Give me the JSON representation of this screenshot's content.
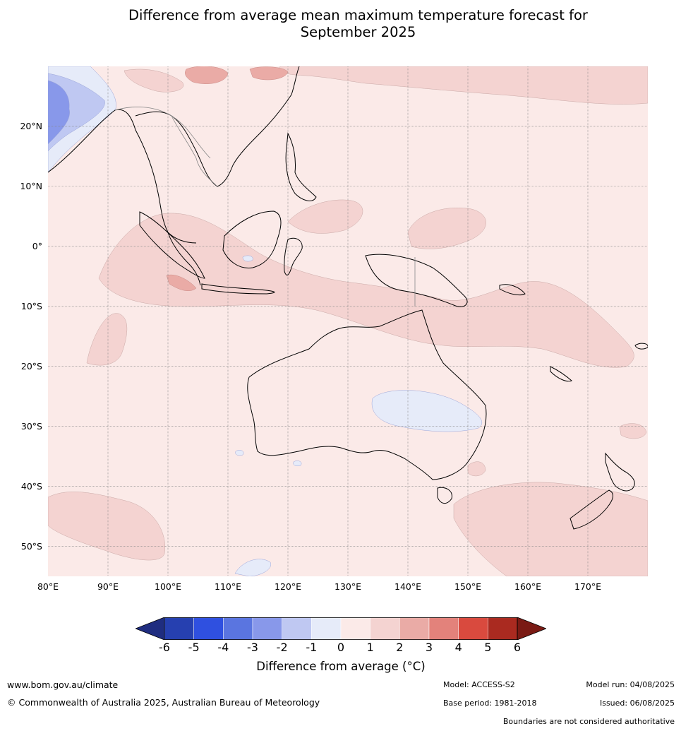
{
  "title_line1": "Difference from average mean maximum temperature forecast for",
  "title_line2": "September 2025",
  "map": {
    "lon_range": [
      80,
      180
    ],
    "lat_range": [
      -55,
      30
    ],
    "lat_ticks": [
      {
        "value": 20,
        "label": "20°N"
      },
      {
        "value": 10,
        "label": "10°N"
      },
      {
        "value": 0,
        "label": "0°"
      },
      {
        "value": -10,
        "label": "10°S"
      },
      {
        "value": -20,
        "label": "20°S"
      },
      {
        "value": -30,
        "label": "30°S"
      },
      {
        "value": -40,
        "label": "40°S"
      },
      {
        "value": -50,
        "label": "50°S"
      }
    ],
    "lon_ticks": [
      {
        "value": 80,
        "label": "80°E"
      },
      {
        "value": 90,
        "label": "90°E"
      },
      {
        "value": 100,
        "label": "100°E"
      },
      {
        "value": 110,
        "label": "110°E"
      },
      {
        "value": 120,
        "label": "120°E"
      },
      {
        "value": 130,
        "label": "130°E"
      },
      {
        "value": 140,
        "label": "140°E"
      },
      {
        "value": 150,
        "label": "150°E"
      },
      {
        "value": 160,
        "label": "160°E"
      },
      {
        "value": 170,
        "label": "170°E"
      }
    ],
    "background_category": "0 to 1",
    "background_color": "#fbeae8"
  },
  "colorbar": {
    "label": "Difference from average (°C)",
    "ticks": [
      "-6",
      "-5",
      "-4",
      "-3",
      "-2",
      "-1",
      "0",
      "1",
      "2",
      "3",
      "4",
      "5",
      "6"
    ],
    "colors": [
      "#1f2d80",
      "#2640b0",
      "#2f50e0",
      "#5a75e0",
      "#8898ea",
      "#bfc8f2",
      "#e6ebf9",
      "#fbeae8",
      "#f4d3d1",
      "#eaaba6",
      "#e3827b",
      "#d94a3e",
      "#aa2a20",
      "#7a1a14"
    ]
  },
  "footer": {
    "url": "www.bom.gov.au/climate",
    "copyright": "© Commonwealth of Australia 2025, Australian Bureau of Meteorology",
    "model": "Model: ACCESS-S2",
    "base_period": "Base period: 1981-2018",
    "model_run": "Model run: 04/08/2025",
    "issued": "Issued: 06/08/2025",
    "disclaimer": "Boundaries are not considered authoritative"
  }
}
